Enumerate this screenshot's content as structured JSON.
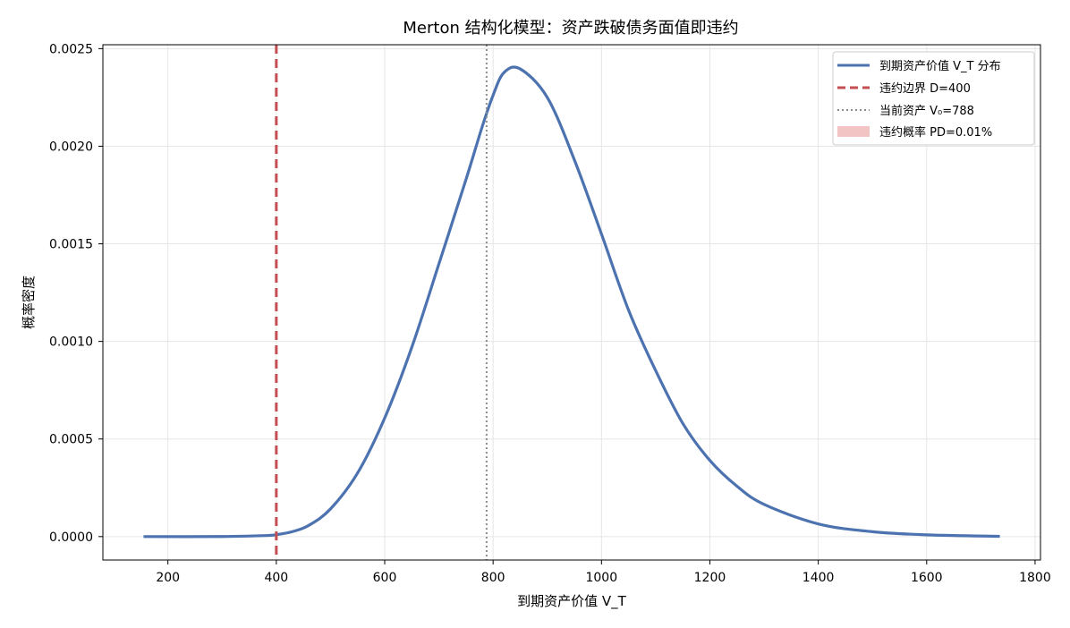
{
  "chart_data": {
    "type": "line",
    "title": "Merton 结构化模型：资产跌破债务面值即违约",
    "xlabel": "到期资产价值 V_T",
    "ylabel": "概率密度",
    "xlim": [
      80,
      1810
    ],
    "ylim": [
      -0.00012,
      0.00252
    ],
    "x_ticks": [
      200,
      400,
      600,
      800,
      1000,
      1200,
      1400,
      1600,
      1800
    ],
    "y_ticks": [
      0.0,
      0.0005,
      0.001,
      0.0015,
      0.002,
      0.0025
    ],
    "x_tick_labels": [
      "200",
      "400",
      "600",
      "800",
      "1000",
      "1200",
      "1400",
      "1600",
      "1800"
    ],
    "y_tick_labels": [
      "0.0000",
      "0.0005",
      "0.0010",
      "0.0015",
      "0.0020",
      "0.0025"
    ],
    "grid": true,
    "legend_position": "top-right",
    "series": [
      {
        "name": "到期资产价值 V_T 分布",
        "color": "#4c72b0",
        "style": "solid",
        "x": [
          155,
          300,
          380,
          400,
          430,
          460,
          500,
          550,
          600,
          650,
          700,
          750,
          780,
          800,
          820,
          850,
          900,
          950,
          1000,
          1050,
          1100,
          1150,
          1200,
          1250,
          1300,
          1400,
          1500,
          1600,
          1735
        ],
        "y": [
          0.0,
          3e-07,
          5.2e-06,
          9.8e-06,
          2.56e-05,
          5.76e-05,
          0.0001418,
          0.0003259,
          0.0006074,
          0.0009699,
          0.0013969,
          0.0018296,
          0.0021009,
          0.0022612,
          0.0023771,
          0.002396,
          0.00225,
          0.00193,
          0.00155,
          0.00116,
          0.00085,
          0.00058,
          0.00039,
          0.000258,
          0.000165,
          6.5e-05,
          2.5e-05,
          9e-06,
          1.5e-06
        ]
      },
      {
        "name": "违约边界 D=400",
        "color": "#c44e52",
        "style": "dashed",
        "vline_x": 400
      },
      {
        "name": "当前资产 V₀=788",
        "color": "#8c8c8c",
        "style": "dotted",
        "vline_x": 788
      },
      {
        "name": "违约概率 PD=0.01%",
        "color": "#f2c4c4",
        "style": "fill",
        "fill_x_max": 400
      }
    ]
  }
}
